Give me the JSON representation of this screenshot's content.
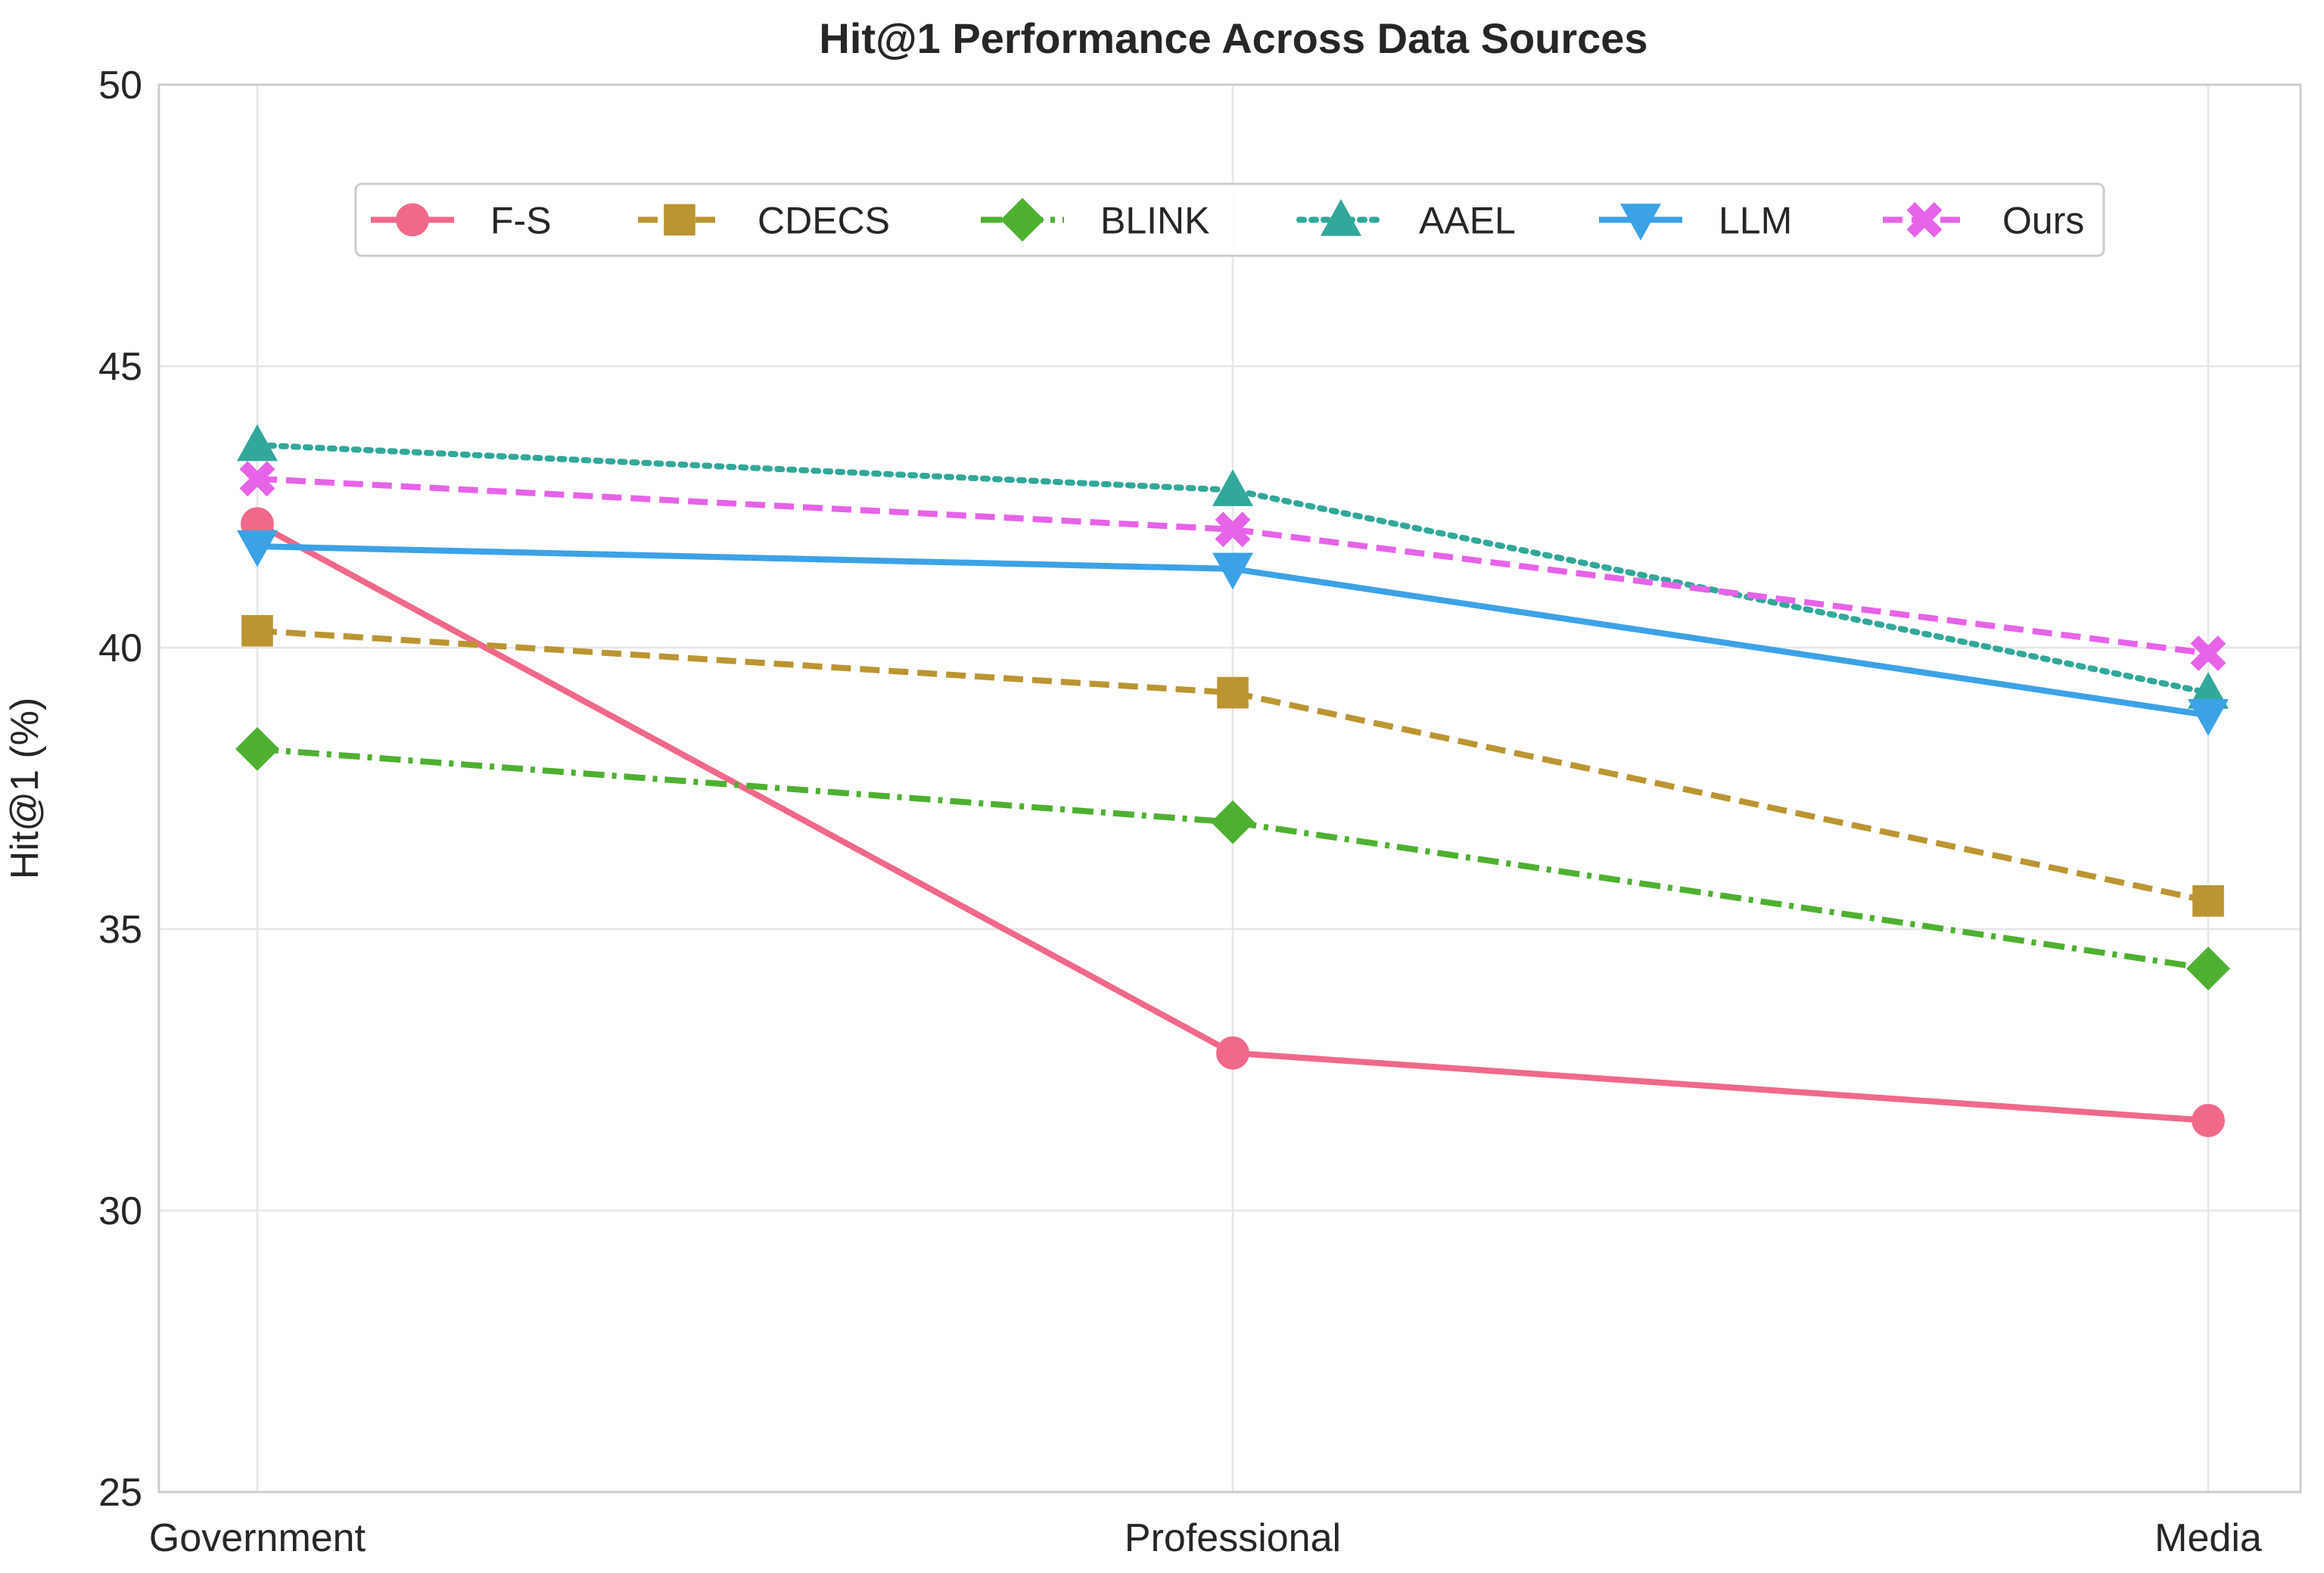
{
  "chart_data": {
    "type": "line",
    "title": "Hit@1 Performance Across Data Sources",
    "xlabel": "",
    "ylabel": "Hit@1 (%)",
    "categories": [
      "Government",
      "Professional",
      "Media"
    ],
    "ylim": [
      25,
      50
    ],
    "yticks": [
      "25",
      "30",
      "35",
      "40",
      "45",
      "50"
    ],
    "grid": true,
    "legend_position": "top-center",
    "series": [
      {
        "name": "F-S",
        "values": [
          42.2,
          32.8,
          31.6
        ],
        "color": "#f0698a",
        "dash": "solid",
        "marker": "circle"
      },
      {
        "name": "CDECS",
        "values": [
          40.3,
          39.2,
          35.5
        ],
        "color": "#bb9531",
        "dash": "dashed",
        "marker": "square"
      },
      {
        "name": "BLINK",
        "values": [
          38.2,
          36.9,
          34.3
        ],
        "color": "#4eb031",
        "dash": "dashdot",
        "marker": "diamond"
      },
      {
        "name": "AAEL",
        "values": [
          43.6,
          42.8,
          39.2
        ],
        "color": "#31a89a",
        "dash": "dotted",
        "marker": "triangle-up"
      },
      {
        "name": "LLM",
        "values": [
          41.8,
          41.4,
          38.8
        ],
        "color": "#3ca2e6",
        "dash": "solid",
        "marker": "triangle-down"
      },
      {
        "name": "Ours",
        "values": [
          43.0,
          42.1,
          39.9
        ],
        "color": "#e663e8",
        "dash": "dashed",
        "marker": "x-filled"
      }
    ]
  }
}
